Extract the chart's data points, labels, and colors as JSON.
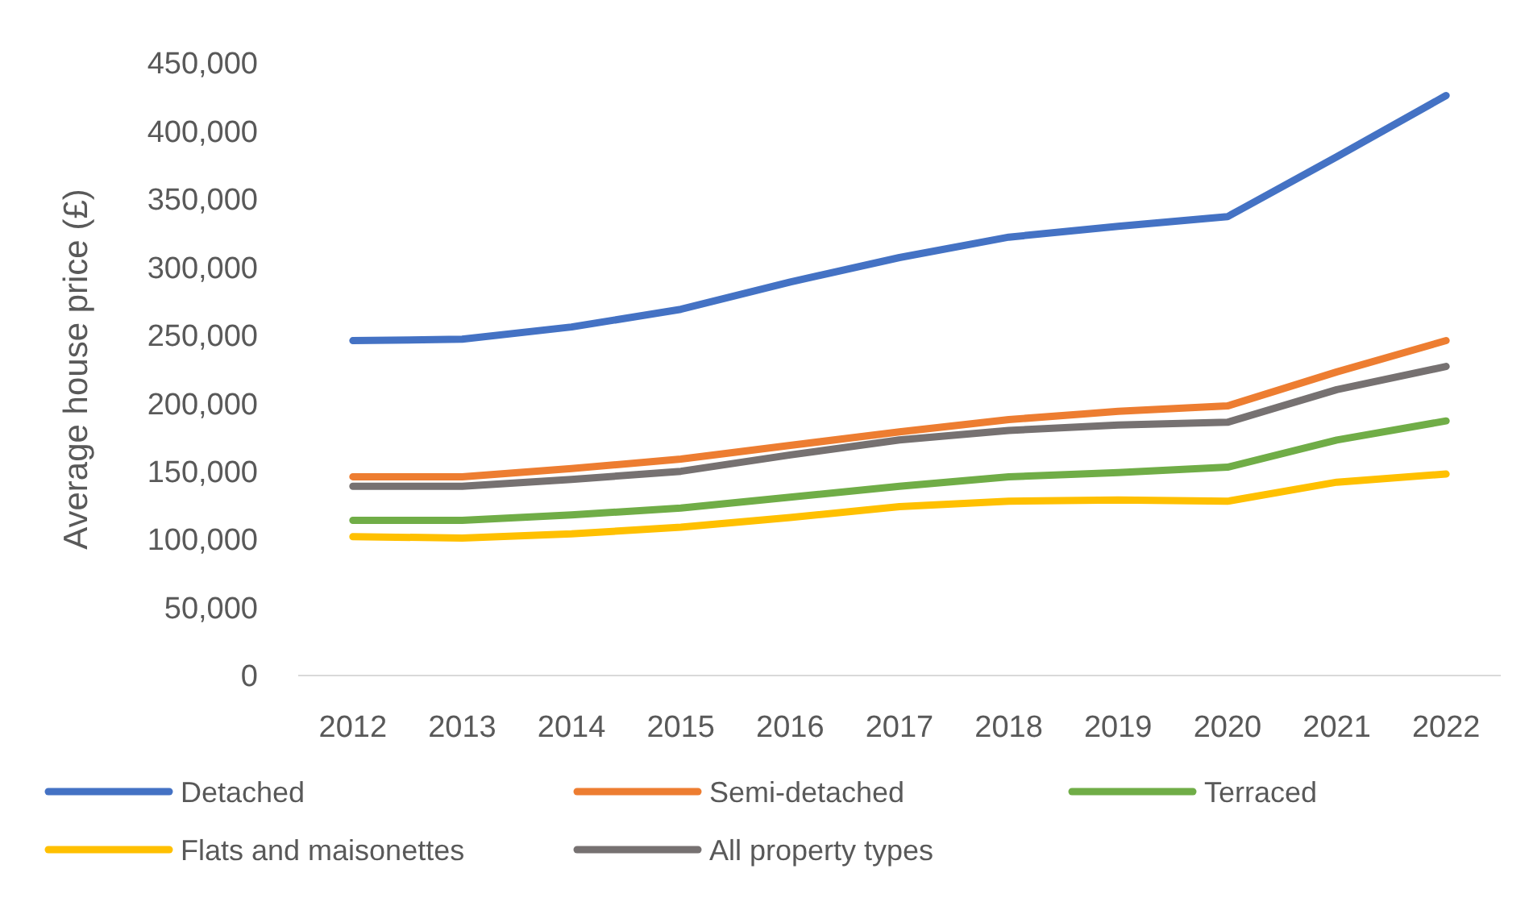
{
  "chart_data": {
    "type": "line",
    "ylabel": "Average house price (£)",
    "categories": [
      "2012",
      "2013",
      "2014",
      "2015",
      "2016",
      "2017",
      "2018",
      "2019",
      "2020",
      "2021",
      "2022"
    ],
    "ylim": [
      0,
      450000
    ],
    "yticks": [
      {
        "value": 0,
        "label": "0"
      },
      {
        "value": 50000,
        "label": "50,000"
      },
      {
        "value": 100000,
        "label": "100,000"
      },
      {
        "value": 150000,
        "label": "150,000"
      },
      {
        "value": 200000,
        "label": "200,000"
      },
      {
        "value": 250000,
        "label": "250,000"
      },
      {
        "value": 300000,
        "label": "300,000"
      },
      {
        "value": 350000,
        "label": "350,000"
      },
      {
        "value": 400000,
        "label": "400,000"
      },
      {
        "value": 450000,
        "label": "450,000"
      }
    ],
    "grid": false,
    "legend": "bottom",
    "marker": "none",
    "line_style": "solid",
    "series": [
      {
        "name": "Detached",
        "color": "#4472c4",
        "values": [
          246000,
          247000,
          256000,
          269000,
          289000,
          307000,
          322000,
          330000,
          337000,
          381000,
          426000
        ]
      },
      {
        "name": "Semi-detached",
        "color": "#ed7d31",
        "values": [
          146000,
          146000,
          152000,
          159000,
          169000,
          179000,
          188000,
          194000,
          198000,
          223000,
          246000
        ]
      },
      {
        "name": "Terraced",
        "color": "#70ad47",
        "values": [
          114000,
          114000,
          118000,
          123000,
          131000,
          139000,
          146000,
          149000,
          153000,
          173000,
          187000
        ]
      },
      {
        "name": "Flats and maisonettes",
        "color": "#ffc000",
        "values": [
          102000,
          101000,
          104000,
          109000,
          116000,
          124000,
          128000,
          129000,
          128000,
          142000,
          148000
        ]
      },
      {
        "name": "All property types",
        "color": "#767171",
        "values": [
          139000,
          139000,
          144000,
          150000,
          162000,
          173000,
          180000,
          184000,
          186000,
          210000,
          227000
        ]
      }
    ]
  }
}
